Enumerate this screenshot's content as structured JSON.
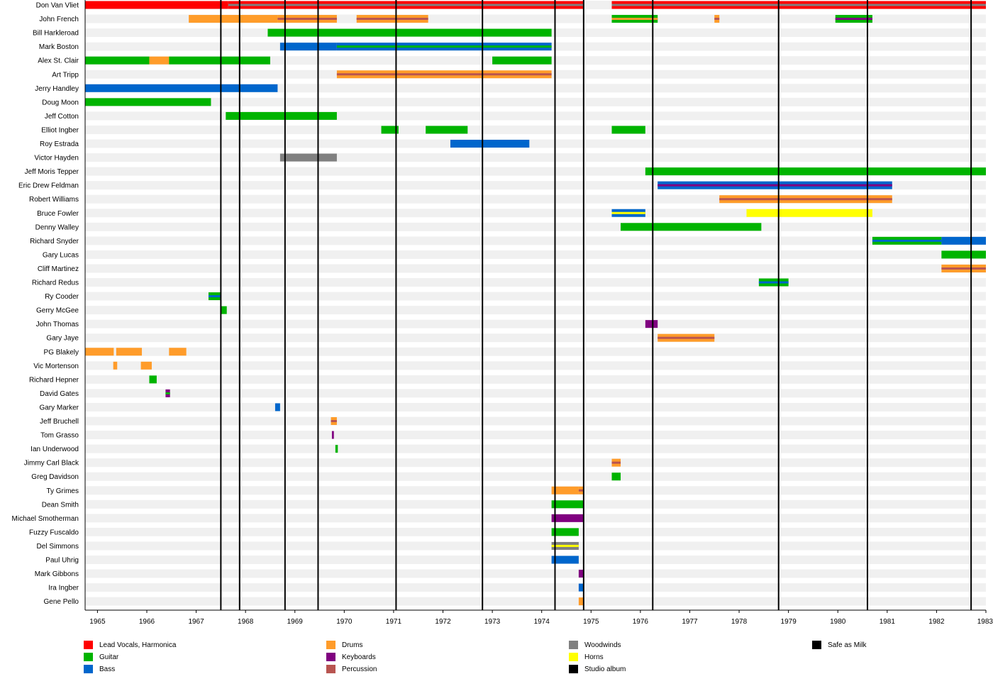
{
  "chart_data": {
    "type": "timeline",
    "x_range": [
      1964.75,
      1983.0
    ],
    "x_ticks": [
      1965,
      1966,
      1967,
      1968,
      1969,
      1970,
      1971,
      1972,
      1973,
      1974,
      1975,
      1976,
      1977,
      1978,
      1979,
      1980,
      1981,
      1982,
      1983
    ],
    "roles": {
      "vocals": {
        "label": "Lead Vocals, Harmonica",
        "color": "#ff0000"
      },
      "guitar": {
        "label": "Guitar",
        "color": "#00b400"
      },
      "bass": {
        "label": "Bass",
        "color": "#0066cc"
      },
      "drums": {
        "label": "Drums",
        "color": "#ff9c2a"
      },
      "keyboards": {
        "label": "Keyboards",
        "color": "#800080"
      },
      "percussion": {
        "label": "Percussion",
        "color": "#b85450"
      },
      "woodwinds": {
        "label": "Woodwinds",
        "color": "#808080"
      },
      "horns": {
        "label": "Horns",
        "color": "#ffff00"
      },
      "studio": {
        "label": "Studio album",
        "color": "#000000"
      },
      "safe": {
        "label": "Safe as Milk",
        "color": "#000000"
      }
    },
    "legend_order": [
      "vocals",
      "guitar",
      "bass",
      "drums",
      "keyboards",
      "percussion",
      "woodwinds",
      "horns",
      "studio",
      "safe"
    ],
    "studio_albums": [
      1967.5,
      1967.88,
      1968.8,
      1969.47,
      1971.05,
      1972.8,
      1974.27,
      1974.85,
      1976.25,
      1978.8,
      1980.6,
      1982.7
    ],
    "members": [
      {
        "name": "Don Van Vliet",
        "bars": [
          {
            "start": 1964.75,
            "end": 1967.65,
            "role": "vocals"
          },
          {
            "start": 1967.65,
            "end": 1974.85,
            "role": "vocals",
            "stripe": "woodwinds"
          },
          {
            "start": 1975.42,
            "end": 1983.0,
            "role": "vocals",
            "stripe": "woodwinds"
          }
        ]
      },
      {
        "name": "John French",
        "bars": [
          {
            "start": 1966.85,
            "end": 1968.65,
            "role": "drums"
          },
          {
            "start": 1968.65,
            "end": 1969.85,
            "role": "drums",
            "stripe": "percussion"
          },
          {
            "start": 1970.25,
            "end": 1971.7,
            "role": "drums",
            "stripe": "percussion"
          },
          {
            "start": 1975.42,
            "end": 1976.35,
            "role": "guitar",
            "stripe": "drums"
          },
          {
            "start": 1977.5,
            "end": 1977.6,
            "role": "drums",
            "stripe": "percussion"
          },
          {
            "start": 1979.95,
            "end": 1980.7,
            "role": "guitar",
            "stripe": "keyboards"
          }
        ]
      },
      {
        "name": "Bill Harkleroad",
        "bars": [
          {
            "start": 1968.45,
            "end": 1974.2,
            "role": "guitar"
          }
        ]
      },
      {
        "name": "Mark Boston",
        "bars": [
          {
            "start": 1968.7,
            "end": 1969.85,
            "role": "bass"
          },
          {
            "start": 1969.85,
            "end": 1974.2,
            "role": "bass",
            "stripe": "guitar"
          }
        ]
      },
      {
        "name": "Alex St. Clair",
        "bars": [
          {
            "start": 1964.75,
            "end": 1966.05,
            "role": "guitar"
          },
          {
            "start": 1966.05,
            "end": 1966.45,
            "role": "drums"
          },
          {
            "start": 1966.45,
            "end": 1968.5,
            "role": "guitar"
          },
          {
            "start": 1973.0,
            "end": 1974.2,
            "role": "guitar"
          }
        ]
      },
      {
        "name": "Art Tripp",
        "bars": [
          {
            "start": 1969.85,
            "end": 1974.2,
            "role": "drums",
            "stripe": "percussion"
          }
        ]
      },
      {
        "name": "Jerry Handley",
        "bars": [
          {
            "start": 1964.75,
            "end": 1968.65,
            "role": "bass"
          }
        ]
      },
      {
        "name": "Doug Moon",
        "bars": [
          {
            "start": 1964.75,
            "end": 1967.3,
            "role": "guitar"
          }
        ]
      },
      {
        "name": "Jeff Cotton",
        "bars": [
          {
            "start": 1967.6,
            "end": 1969.85,
            "role": "guitar"
          }
        ]
      },
      {
        "name": "Elliot Ingber",
        "bars": [
          {
            "start": 1970.75,
            "end": 1971.1,
            "role": "guitar"
          },
          {
            "start": 1971.65,
            "end": 1972.5,
            "role": "guitar"
          },
          {
            "start": 1975.42,
            "end": 1976.1,
            "role": "guitar"
          }
        ]
      },
      {
        "name": "Roy Estrada",
        "bars": [
          {
            "start": 1972.15,
            "end": 1973.75,
            "role": "bass"
          }
        ]
      },
      {
        "name": "Victor Hayden",
        "bars": [
          {
            "start": 1968.7,
            "end": 1969.85,
            "role": "woodwinds"
          }
        ]
      },
      {
        "name": "Jeff Moris Tepper",
        "bars": [
          {
            "start": 1976.1,
            "end": 1983.0,
            "role": "guitar"
          }
        ]
      },
      {
        "name": "Eric Drew Feldman",
        "bars": [
          {
            "start": 1976.35,
            "end": 1981.1,
            "role": "bass",
            "stripe": "keyboards"
          }
        ]
      },
      {
        "name": "Robert Williams",
        "bars": [
          {
            "start": 1977.6,
            "end": 1981.1,
            "role": "drums",
            "stripe": "percussion"
          }
        ]
      },
      {
        "name": "Bruce Fowler",
        "bars": [
          {
            "start": 1975.42,
            "end": 1976.1,
            "role": "bass",
            "stripe": "horns"
          },
          {
            "start": 1978.15,
            "end": 1980.7,
            "role": "horns"
          }
        ]
      },
      {
        "name": "Denny Walley",
        "bars": [
          {
            "start": 1975.6,
            "end": 1978.45,
            "role": "guitar"
          }
        ]
      },
      {
        "name": "Richard Snyder",
        "bars": [
          {
            "start": 1980.7,
            "end": 1982.1,
            "role": "guitar",
            "stripe": "bass"
          },
          {
            "start": 1982.1,
            "end": 1983.0,
            "role": "bass"
          }
        ]
      },
      {
        "name": "Gary Lucas",
        "bars": [
          {
            "start": 1982.1,
            "end": 1983.0,
            "role": "guitar"
          }
        ]
      },
      {
        "name": "Cliff Martinez",
        "bars": [
          {
            "start": 1982.1,
            "end": 1983.0,
            "role": "drums",
            "stripe": "percussion"
          }
        ]
      },
      {
        "name": "Richard Redus",
        "bars": [
          {
            "start": 1978.4,
            "end": 1979.0,
            "role": "guitar",
            "stripe": "bass"
          }
        ]
      },
      {
        "name": "Ry Cooder",
        "bars": [
          {
            "start": 1967.25,
            "end": 1967.5,
            "role": "guitar",
            "stripe": "bass"
          }
        ]
      },
      {
        "name": "Gerry McGee",
        "bars": [
          {
            "start": 1967.5,
            "end": 1967.62,
            "role": "guitar"
          }
        ]
      },
      {
        "name": "John Thomas",
        "bars": [
          {
            "start": 1976.1,
            "end": 1976.35,
            "role": "keyboards"
          }
        ]
      },
      {
        "name": "Gary Jaye",
        "bars": [
          {
            "start": 1976.35,
            "end": 1977.5,
            "role": "drums",
            "stripe": "percussion"
          }
        ]
      },
      {
        "name": "PG Blakely",
        "bars": [
          {
            "start": 1964.75,
            "end": 1965.33,
            "role": "drums"
          },
          {
            "start": 1965.38,
            "end": 1965.9,
            "role": "drums"
          },
          {
            "start": 1966.45,
            "end": 1966.8,
            "role": "drums"
          }
        ]
      },
      {
        "name": "Vic Mortenson",
        "bars": [
          {
            "start": 1965.32,
            "end": 1965.4,
            "role": "drums"
          },
          {
            "start": 1965.88,
            "end": 1966.1,
            "role": "drums"
          }
        ]
      },
      {
        "name": "Richard Hepner",
        "bars": [
          {
            "start": 1966.05,
            "end": 1966.2,
            "role": "guitar"
          }
        ]
      },
      {
        "name": "David Gates",
        "bars": [
          {
            "start": 1966.38,
            "end": 1966.47,
            "role": "keyboards",
            "stripe": "guitar"
          }
        ]
      },
      {
        "name": "Gary Marker",
        "bars": [
          {
            "start": 1968.6,
            "end": 1968.7,
            "role": "bass"
          }
        ]
      },
      {
        "name": "Jeff Bruchell",
        "bars": [
          {
            "start": 1969.73,
            "end": 1969.85,
            "role": "drums",
            "stripe": "percussion"
          }
        ]
      },
      {
        "name": "Tom Grasso",
        "bars": [
          {
            "start": 1969.75,
            "end": 1969.79,
            "role": "keyboards"
          }
        ]
      },
      {
        "name": "Ian Underwood",
        "bars": [
          {
            "start": 1969.82,
            "end": 1969.87,
            "role": "guitar"
          }
        ]
      },
      {
        "name": "Jimmy Carl Black",
        "bars": [
          {
            "start": 1975.42,
            "end": 1975.6,
            "role": "drums",
            "stripe": "percussion"
          }
        ]
      },
      {
        "name": "Greg Davidson",
        "bars": [
          {
            "start": 1975.42,
            "end": 1975.6,
            "role": "guitar"
          }
        ]
      },
      {
        "name": "Ty Grimes",
        "bars": [
          {
            "start": 1974.2,
            "end": 1974.75,
            "role": "drums"
          },
          {
            "start": 1974.75,
            "end": 1974.85,
            "role": "drums",
            "stripe": "percussion"
          }
        ]
      },
      {
        "name": "Dean Smith",
        "bars": [
          {
            "start": 1974.2,
            "end": 1974.85,
            "role": "guitar"
          }
        ]
      },
      {
        "name": "Michael Smotherman",
        "bars": [
          {
            "start": 1974.2,
            "end": 1974.85,
            "role": "keyboards"
          }
        ]
      },
      {
        "name": "Fuzzy Fuscaldo",
        "bars": [
          {
            "start": 1974.2,
            "end": 1974.75,
            "role": "guitar"
          }
        ]
      },
      {
        "name": "Del Simmons",
        "bars": [
          {
            "start": 1974.2,
            "end": 1974.75,
            "role": "woodwinds",
            "stripe": "horns"
          }
        ]
      },
      {
        "name": "Paul Uhrig",
        "bars": [
          {
            "start": 1974.2,
            "end": 1974.75,
            "role": "bass"
          }
        ]
      },
      {
        "name": "Mark Gibbons",
        "bars": [
          {
            "start": 1974.75,
            "end": 1974.85,
            "role": "keyboards"
          }
        ]
      },
      {
        "name": "Ira Ingber",
        "bars": [
          {
            "start": 1974.75,
            "end": 1974.85,
            "role": "bass"
          }
        ]
      },
      {
        "name": "Gene Pello",
        "bars": [
          {
            "start": 1974.75,
            "end": 1974.85,
            "role": "drums"
          }
        ]
      }
    ]
  }
}
